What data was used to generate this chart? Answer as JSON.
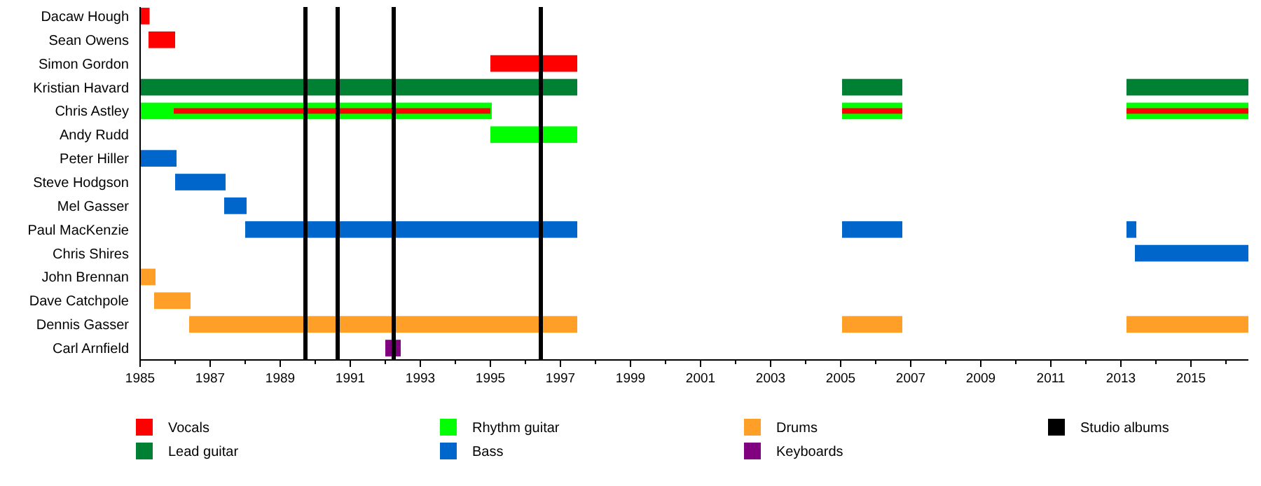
{
  "chart_data": {
    "type": "bar",
    "orientation": "horizontal",
    "legend": "bottom",
    "grid": false,
    "categories": [
      "Dacaw Hough",
      "Sean Owens",
      "Simon Gordon",
      "Kristian Havard",
      "Chris Astley",
      "Andy Rudd",
      "Peter Hiller",
      "Steve Hodgson",
      "Mel Gasser",
      "Paul MacKenzie",
      "Chris Shires",
      "John Brennan",
      "Dave Catchpole",
      "Dennis Gasser",
      "Carl Arnfield"
    ],
    "xlim": [
      1985,
      2016.64
    ],
    "xticks": [
      1985,
      {
        "value": 1986,
        "label": null
      },
      1987,
      {
        "value": 1988,
        "label": null
      },
      1989,
      {
        "value": 1990,
        "label": null
      },
      1991,
      {
        "value": 1992,
        "label": null
      },
      1993,
      {
        "value": 1994,
        "label": null
      },
      1995,
      {
        "value": 1996,
        "label": null
      },
      1997,
      {
        "value": 1998,
        "label": null
      },
      1999,
      {
        "value": 2000,
        "label": null
      },
      2001,
      {
        "value": 2002,
        "label": null
      },
      2003,
      {
        "value": 2004,
        "label": null
      },
      2005,
      {
        "value": 2006,
        "label": null
      },
      2007,
      {
        "value": 2008,
        "label": null
      },
      2009,
      {
        "value": 2010,
        "label": null
      },
      2011,
      {
        "value": 2012,
        "label": null
      },
      2013,
      {
        "value": 2014,
        "label": null
      },
      2015,
      {
        "value": 2016,
        "label": null
      }
    ],
    "series": [
      {
        "name": "Vocals",
        "color": "#ff0000",
        "base": [
          1985,
          1985.24,
          1995,
          null,
          1985.96,
          null,
          null,
          null,
          null,
          null,
          null,
          null,
          null,
          null,
          null
        ],
        "values": [
          0.27,
          0.76,
          2.48,
          null,
          9.04,
          null,
          null,
          null,
          null,
          null,
          null,
          null,
          null,
          null,
          null
        ]
      },
      {
        "name": "Lead guitar",
        "color": "#008033",
        "base": [
          null,
          null,
          null,
          1985,
          null,
          null,
          null,
          null,
          null,
          null,
          null,
          null,
          null,
          null,
          null
        ],
        "values": [
          null,
          null,
          null,
          12.48,
          null,
          null,
          null,
          null,
          null,
          null,
          null,
          null,
          null,
          null,
          null
        ]
      },
      {
        "name": "Rhythm guitar",
        "color": "#00ff00",
        "base": [
          null,
          null,
          null,
          null,
          1985,
          1995,
          null,
          null,
          null,
          null,
          null,
          null,
          null,
          null,
          null
        ],
        "values": [
          null,
          null,
          null,
          null,
          10.04,
          2.48,
          null,
          null,
          null,
          null,
          null,
          null,
          null,
          null,
          null
        ]
      },
      {
        "name": "Bass",
        "color": "#0066cc",
        "base": [
          null,
          null,
          null,
          null,
          null,
          null,
          1985,
          1986,
          1987.4,
          1988,
          2013.4,
          null,
          null,
          null,
          null
        ],
        "values": [
          null,
          null,
          null,
          null,
          null,
          null,
          1.04,
          1.44,
          0.64,
          9.48,
          3.24,
          null,
          null,
          null,
          null
        ]
      },
      {
        "name": "Drums",
        "color": "#ff9f27",
        "base": [
          null,
          null,
          null,
          null,
          null,
          null,
          null,
          null,
          null,
          null,
          null,
          1985,
          1985.4,
          1986.4,
          null
        ],
        "values": [
          null,
          null,
          null,
          null,
          null,
          null,
          null,
          null,
          null,
          null,
          null,
          0.44,
          1.04,
          11.08,
          null
        ]
      },
      {
        "name": "Keyboards",
        "color": "#800080",
        "base": [
          null,
          null,
          null,
          null,
          null,
          null,
          null,
          null,
          null,
          null,
          null,
          null,
          null,
          null,
          1992
        ],
        "values": [
          null,
          null,
          null,
          null,
          null,
          null,
          null,
          null,
          null,
          null,
          null,
          null,
          null,
          null,
          0.44
        ]
      },
      {
        "color": "#ff0000",
        "base": [
          null,
          null,
          null,
          null,
          2005.04,
          null,
          null,
          null,
          null,
          null,
          null,
          null,
          null,
          null,
          null
        ],
        "values": [
          null,
          null,
          null,
          null,
          1.72,
          null,
          null,
          null,
          null,
          null,
          null,
          null,
          null,
          null,
          null
        ]
      },
      {
        "color": "#008033",
        "base": [
          null,
          null,
          null,
          2005.04,
          null,
          null,
          null,
          null,
          null,
          null,
          null,
          null,
          null,
          null,
          null
        ],
        "values": [
          null,
          null,
          null,
          1.72,
          null,
          null,
          null,
          null,
          null,
          null,
          null,
          null,
          null,
          null,
          null
        ]
      },
      {
        "color": "#00ff00",
        "base": [
          null,
          null,
          null,
          null,
          2005.04,
          null,
          null,
          null,
          null,
          null,
          null,
          null,
          null,
          null,
          null
        ],
        "values": [
          null,
          null,
          null,
          null,
          1.72,
          null,
          null,
          null,
          null,
          null,
          null,
          null,
          null,
          null,
          null
        ]
      },
      {
        "color": "#0066cc",
        "base": [
          null,
          null,
          null,
          null,
          null,
          null,
          null,
          null,
          null,
          2005.04,
          null,
          null,
          null,
          null,
          null
        ],
        "values": [
          null,
          null,
          null,
          null,
          null,
          null,
          null,
          null,
          null,
          1.72,
          null,
          null,
          null,
          null,
          null
        ]
      },
      {
        "color": "#ff9f27",
        "base": [
          null,
          null,
          null,
          null,
          null,
          null,
          null,
          null,
          null,
          null,
          null,
          null,
          null,
          2005.04,
          null
        ],
        "values": [
          null,
          null,
          null,
          null,
          null,
          null,
          null,
          null,
          null,
          null,
          null,
          null,
          null,
          1.72,
          null
        ]
      },
      {
        "color": "#ff0000",
        "base": [
          null,
          null,
          null,
          null,
          2013.16,
          null,
          null,
          null,
          null,
          null,
          null,
          null,
          null,
          null,
          null
        ],
        "values": [
          null,
          null,
          null,
          null,
          3.48,
          null,
          null,
          null,
          null,
          null,
          null,
          null,
          null,
          null,
          null
        ]
      },
      {
        "color": "#008033",
        "base": [
          null,
          null,
          null,
          2013.16,
          null,
          null,
          null,
          null,
          null,
          null,
          null,
          null,
          null,
          null,
          null
        ],
        "values": [
          null,
          null,
          null,
          3.48,
          null,
          null,
          null,
          null,
          null,
          null,
          null,
          null,
          null,
          null,
          null
        ]
      },
      {
        "color": "#00ff00",
        "base": [
          null,
          null,
          null,
          null,
          2013.16,
          null,
          null,
          null,
          null,
          null,
          null,
          null,
          null,
          null,
          null
        ],
        "values": [
          null,
          null,
          null,
          null,
          3.48,
          null,
          null,
          null,
          null,
          null,
          null,
          null,
          null,
          null,
          null
        ]
      },
      {
        "color": "#0066cc",
        "base": [
          null,
          null,
          null,
          null,
          null,
          null,
          null,
          null,
          null,
          2013.16,
          null,
          null,
          null,
          null,
          null
        ],
        "values": [
          null,
          null,
          null,
          null,
          null,
          null,
          null,
          null,
          null,
          0.28,
          null,
          null,
          null,
          null,
          null
        ]
      },
      {
        "color": "#ff9f27",
        "base": [
          null,
          null,
          null,
          null,
          null,
          null,
          null,
          null,
          null,
          null,
          null,
          null,
          null,
          2013.16,
          null
        ],
        "values": [
          null,
          null,
          null,
          null,
          null,
          null,
          null,
          null,
          null,
          null,
          null,
          null,
          null,
          3.48,
          null
        ]
      }
    ],
    "ref_lines": [
      {
        "axis": "x",
        "value": 1989.72,
        "color": "#000000",
        "label": "Studio albums"
      },
      {
        "axis": "x",
        "value": 1990.64,
        "color": "#000000"
      },
      {
        "axis": "x",
        "value": 1992.24,
        "color": "#000000"
      },
      {
        "axis": "x",
        "value": 1996.44,
        "color": "#000000"
      }
    ]
  }
}
